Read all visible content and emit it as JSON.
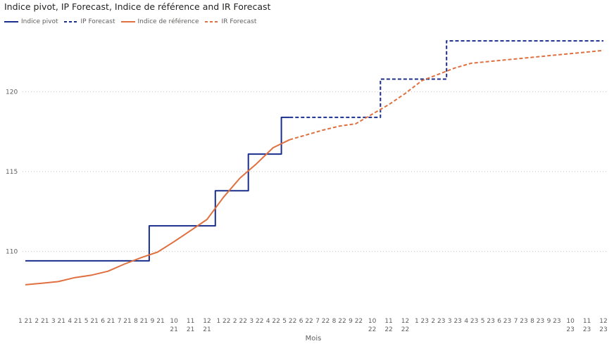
{
  "chart_data": {
    "type": "line",
    "title": "Indice pivot, IP Forecast, Indice de référence and IR Forecast",
    "xlabel": "Mois",
    "ylabel": "",
    "ylim": [
      106,
      124
    ],
    "yticks": [
      110,
      115,
      120
    ],
    "grid": true,
    "legend_position": "top-left",
    "categories": [
      [
        "1",
        "21"
      ],
      [
        "2",
        "21"
      ],
      [
        "3",
        "21"
      ],
      [
        "4",
        "21"
      ],
      [
        "5",
        "21"
      ],
      [
        "6",
        "21"
      ],
      [
        "7",
        "21"
      ],
      [
        "8",
        "21"
      ],
      [
        "9",
        "21"
      ],
      [
        "10",
        "21"
      ],
      [
        "11",
        "21"
      ],
      [
        "12",
        "21"
      ],
      [
        "1",
        "22"
      ],
      [
        "2",
        "22"
      ],
      [
        "3",
        "22"
      ],
      [
        "4",
        "22"
      ],
      [
        "5",
        "22"
      ],
      [
        "6",
        "22"
      ],
      [
        "7",
        "22"
      ],
      [
        "8",
        "22"
      ],
      [
        "9",
        "22"
      ],
      [
        "10",
        "22"
      ],
      [
        "11",
        "22"
      ],
      [
        "12",
        "22"
      ],
      [
        "1",
        "23"
      ],
      [
        "2",
        "23"
      ],
      [
        "3",
        "23"
      ],
      [
        "4",
        "23"
      ],
      [
        "5",
        "23"
      ],
      [
        "6",
        "23"
      ],
      [
        "7",
        "23"
      ],
      [
        "8",
        "23"
      ],
      [
        "9",
        "23"
      ],
      [
        "10",
        "23"
      ],
      [
        "11",
        "23"
      ],
      [
        "12",
        "23"
      ]
    ],
    "series": [
      {
        "name": "Indice pivot",
        "color": "#1a2e8c",
        "dashed": false,
        "step": true,
        "values": [
          109.4,
          109.4,
          109.4,
          109.4,
          109.4,
          109.4,
          109.4,
          109.4,
          111.6,
          111.6,
          111.6,
          111.6,
          113.8,
          113.8,
          116.1,
          116.1,
          118.4,
          null,
          null,
          null,
          null,
          null,
          null,
          null,
          null,
          null,
          null,
          null,
          null,
          null,
          null,
          null,
          null,
          null,
          null,
          null
        ]
      },
      {
        "name": "IP Forecast",
        "color": "#1a2e8c",
        "dashed": true,
        "step": true,
        "values": [
          null,
          null,
          null,
          null,
          null,
          null,
          null,
          null,
          null,
          null,
          null,
          null,
          null,
          null,
          null,
          null,
          118.4,
          118.4,
          118.4,
          118.4,
          118.4,
          118.4,
          120.8,
          120.8,
          120.8,
          120.8,
          123.2,
          123.2,
          123.2,
          123.2,
          123.2,
          123.2,
          123.2,
          123.2,
          123.2,
          123.2
        ]
      },
      {
        "name": "Indice de référence",
        "color": "#e07040",
        "dashed": false,
        "step": false,
        "values": [
          107.9,
          108.0,
          108.1,
          108.35,
          108.5,
          108.75,
          109.2,
          109.6,
          109.95,
          110.6,
          111.3,
          112.0,
          113.4,
          114.6,
          115.5,
          116.5,
          117.0,
          null,
          null,
          null,
          null,
          null,
          null,
          null,
          null,
          null,
          null,
          null,
          null,
          null,
          null,
          null,
          null,
          null,
          null,
          null
        ]
      },
      {
        "name": "IR Forecast",
        "color": "#e07040",
        "dashed": true,
        "step": false,
        "values": [
          null,
          null,
          null,
          null,
          null,
          null,
          null,
          null,
          null,
          null,
          null,
          null,
          null,
          null,
          null,
          null,
          117.0,
          117.3,
          117.6,
          117.85,
          118.0,
          118.6,
          119.2,
          119.9,
          120.7,
          121.1,
          121.5,
          121.8,
          121.9,
          122.0,
          122.1,
          122.2,
          122.3,
          122.4,
          122.5,
          122.6
        ]
      }
    ]
  }
}
